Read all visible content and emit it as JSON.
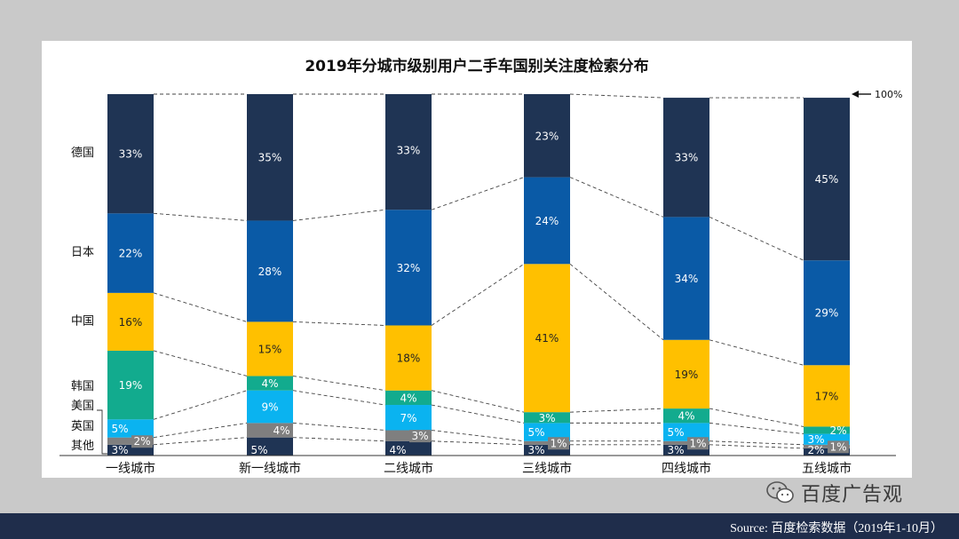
{
  "chart_data": {
    "type": "bar",
    "stacked": true,
    "title": "2019年分城市级别用户二手车国别关注度检索分布",
    "categories": [
      "一线城市",
      "新一线城市",
      "二线城市",
      "三线城市",
      "四线城市",
      "五线城市"
    ],
    "series": [
      {
        "name": "其他",
        "values": [
          3,
          5,
          4,
          3,
          3,
          2
        ],
        "labels": [
          "3%",
          "5%",
          "4%",
          "3%",
          "3%",
          "2%"
        ],
        "color": "#1f3454",
        "label_color": "#ffffff"
      },
      {
        "name": "英国",
        "values": [
          2,
          4,
          3,
          1,
          1,
          1
        ],
        "labels": [
          "2%",
          "4%",
          "3%",
          "1%",
          "1%",
          "1%"
        ],
        "color": "#7f7f7f",
        "label_color": "#ffffff"
      },
      {
        "name": "美国",
        "values": [
          5,
          9,
          7,
          5,
          5,
          3
        ],
        "labels": [
          "5%",
          "9%",
          "7%",
          "5%",
          "5%",
          "3%"
        ],
        "color": "#0ab3f0",
        "label_color": "#ffffff"
      },
      {
        "name": "韩国",
        "values": [
          19,
          4,
          4,
          3,
          4,
          2
        ],
        "labels": [
          "19%",
          "4%",
          "4%",
          "3%",
          "4%",
          "2%"
        ],
        "color": "#12ab8e",
        "label_color": "#ffffff"
      },
      {
        "name": "中国",
        "values": [
          16,
          15,
          18,
          41,
          19,
          17
        ],
        "labels": [
          "16%",
          "15%",
          "18%",
          "41%",
          "19%",
          "17%"
        ],
        "color": "#ffc000",
        "label_color": "#222222"
      },
      {
        "name": "日本",
        "values": [
          22,
          28,
          32,
          24,
          34,
          29
        ],
        "labels": [
          "22%",
          "28%",
          "32%",
          "24%",
          "34%",
          "29%"
        ],
        "color": "#0a5aa6",
        "label_color": "#ffffff"
      },
      {
        "name": "德国",
        "values": [
          33,
          35,
          33,
          23,
          33,
          45
        ],
        "labels": [
          "33%",
          "35%",
          "33%",
          "23%",
          "33%",
          "45%"
        ],
        "color": "#1f3454",
        "label_color": "#ffffff"
      }
    ],
    "ylim": [
      0,
      100
    ],
    "top_annotation": "100%",
    "legend_labels": [
      "德国",
      "日本",
      "中国",
      "韩国",
      "美国",
      "英国",
      "其他"
    ]
  },
  "footer": {
    "source": "Source: 百度检索数据（2019年1-10月）"
  },
  "watermark": {
    "text": "百度广告观",
    "icon": "wechat-icon"
  }
}
